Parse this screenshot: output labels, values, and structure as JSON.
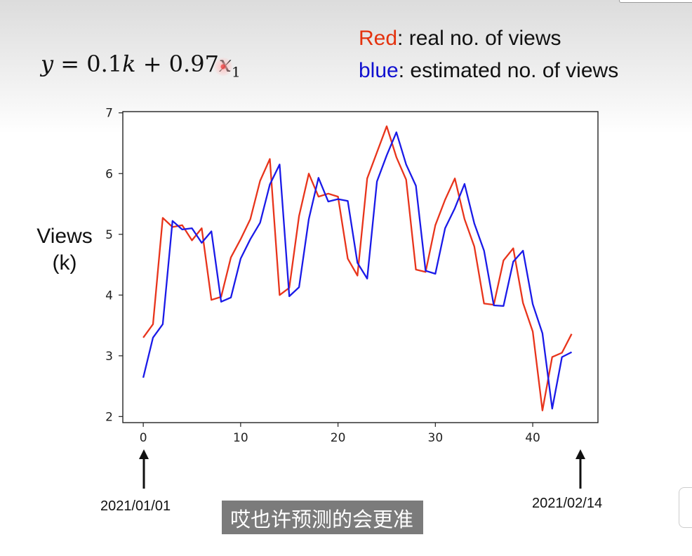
{
  "formula": {
    "lhs": "y",
    "eq": "=",
    "c1": "0.1",
    "v1": "k",
    "plus": "+",
    "c2": "0.97",
    "v2": "x",
    "sub": "1"
  },
  "legend": {
    "red_word": "Red",
    "red_rest": ": real no. of views",
    "blue_word": "blue",
    "blue_rest": ":  estimated no. of views"
  },
  "ylabel_outer": {
    "line1": "Views",
    "line2": "(k)"
  },
  "annotations": {
    "start_date": "2021/01/01",
    "end_date": "2021/02/14"
  },
  "subtitle": "哎也许预测的会更准",
  "colors": {
    "real": "#e8341b",
    "estimated": "#1a1ae8"
  },
  "chart_data": {
    "type": "line",
    "xlim": [
      -2.1,
      46.7
    ],
    "ylim": [
      1.9,
      7.02
    ],
    "xticks": [
      0,
      10,
      20,
      30,
      40
    ],
    "yticks": [
      2,
      3,
      4,
      5,
      6,
      7
    ],
    "grid": false,
    "series": [
      {
        "name": "Red",
        "x": [
          0,
          1,
          2,
          3,
          4,
          5,
          6,
          7,
          8,
          9,
          10,
          11,
          12,
          13,
          14,
          15,
          16,
          17,
          18,
          19,
          20,
          21,
          22,
          23,
          24,
          25,
          26,
          27,
          28,
          29,
          30,
          31,
          32,
          33,
          34,
          35,
          36,
          37,
          38,
          39,
          40,
          41,
          42,
          43,
          44
        ],
        "values": [
          3.3,
          3.52,
          5.27,
          5.12,
          5.15,
          4.9,
          5.1,
          3.92,
          3.97,
          4.62,
          4.92,
          5.25,
          5.88,
          6.24,
          4.0,
          4.12,
          5.3,
          6.0,
          5.62,
          5.67,
          5.62,
          4.6,
          4.32,
          5.92,
          6.35,
          6.78,
          6.27,
          5.9,
          4.42,
          4.38,
          5.15,
          5.57,
          5.92,
          5.25,
          4.8,
          3.86,
          3.84,
          4.57,
          4.77,
          3.87,
          3.4,
          2.1,
          2.98,
          3.05,
          3.36
        ]
      },
      {
        "name": "blue",
        "x": [
          0,
          1,
          2,
          3,
          4,
          5,
          6,
          7,
          8,
          9,
          10,
          11,
          12,
          13,
          14,
          15,
          16,
          17,
          18,
          19,
          20,
          21,
          22,
          23,
          24,
          25,
          26,
          27,
          28,
          29,
          30,
          31,
          32,
          33,
          34,
          35,
          36,
          37,
          38,
          39,
          40,
          41,
          42,
          43,
          44
        ],
        "values": [
          2.64,
          3.3,
          3.52,
          5.22,
          5.08,
          5.1,
          4.86,
          5.05,
          3.89,
          3.96,
          4.6,
          4.92,
          5.19,
          5.82,
          6.15,
          3.98,
          4.13,
          5.25,
          5.93,
          5.54,
          5.58,
          5.55,
          4.53,
          4.27,
          5.87,
          6.3,
          6.68,
          6.15,
          5.8,
          4.4,
          4.35,
          5.1,
          5.43,
          5.83,
          5.18,
          4.73,
          3.83,
          3.82,
          4.55,
          4.73,
          3.85,
          3.37,
          2.13,
          2.98,
          3.06
        ]
      }
    ]
  }
}
